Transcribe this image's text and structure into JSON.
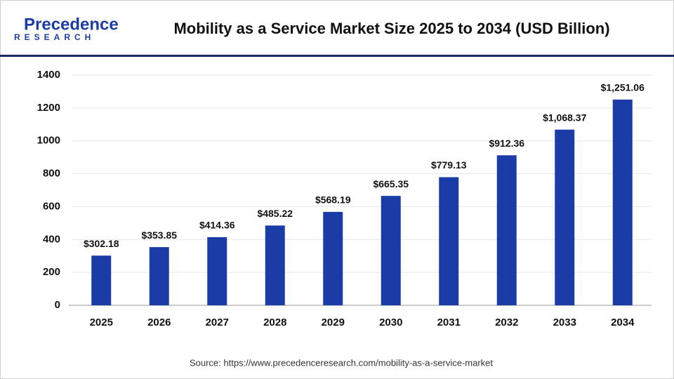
{
  "logo": {
    "name": "Precedence",
    "tagline": "RESEARCH"
  },
  "chart_data": {
    "type": "bar",
    "title": "Mobility as a Service Market Size 2025 to 2034 (USD Billion)",
    "categories": [
      "2025",
      "2026",
      "2027",
      "2028",
      "2029",
      "2030",
      "2031",
      "2032",
      "2033",
      "2034"
    ],
    "values": [
      302.18,
      353.85,
      414.36,
      485.22,
      568.19,
      665.35,
      779.13,
      912.36,
      1068.37,
      1251.06
    ],
    "value_labels": [
      "$302.18",
      "$353.85",
      "$414.36",
      "$485.22",
      "$568.19",
      "$665.35",
      "$779.13",
      "$912.36",
      "$1,068.37",
      "$1,251.06"
    ],
    "color": "#1b3ca6",
    "ylim": [
      0,
      1400
    ],
    "yticks": [
      0,
      200,
      400,
      600,
      800,
      1000,
      1200,
      1400
    ],
    "grid": true,
    "source": "Source: https://www.precedenceresearch.com/mobility-as-a-service-market"
  }
}
